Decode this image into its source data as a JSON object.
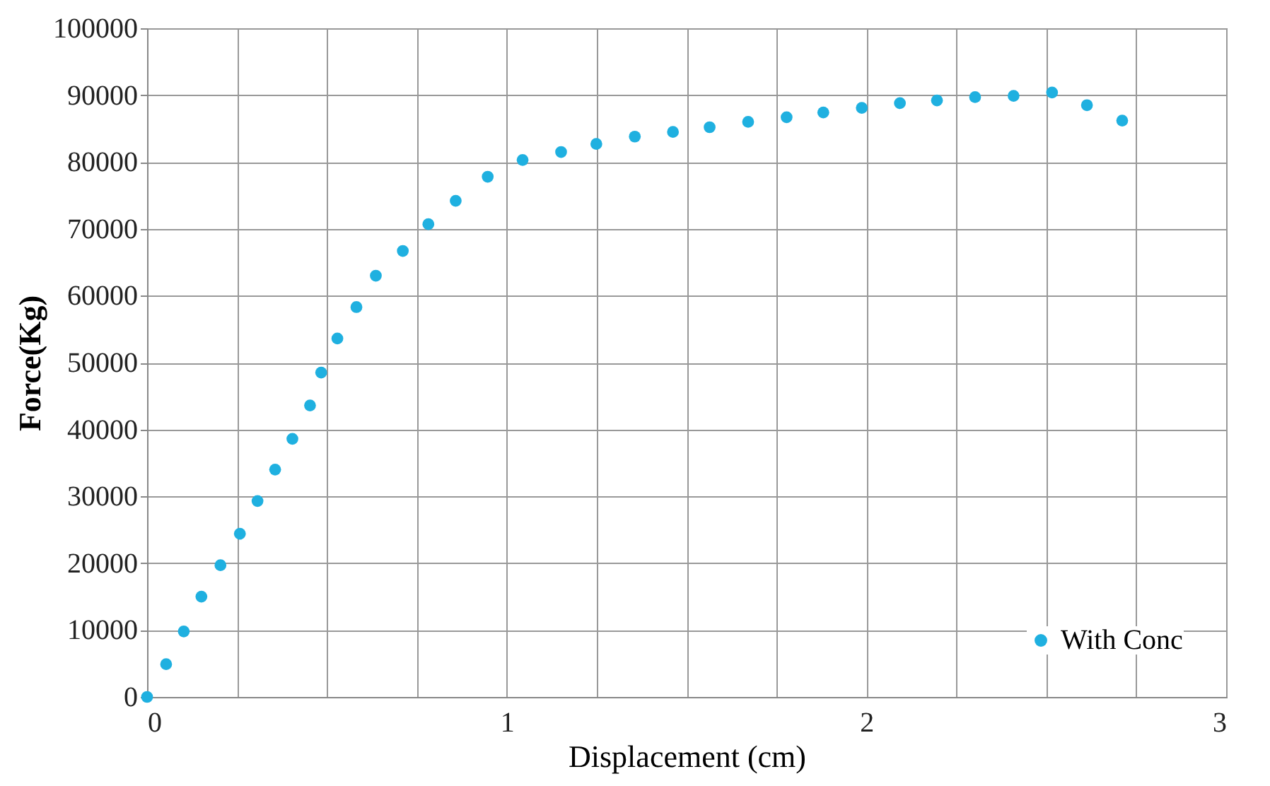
{
  "chart_data": {
    "type": "scatter",
    "xlabel": "Displacement (cm)",
    "ylabel": "Force(Kg)",
    "x": [
      0,
      0.053,
      0.102,
      0.151,
      0.204,
      0.258,
      0.307,
      0.356,
      0.404,
      0.453,
      0.484,
      0.529,
      0.582,
      0.636,
      0.711,
      0.782,
      0.858,
      0.947,
      1.044,
      1.151,
      1.249,
      1.356,
      1.462,
      1.564,
      1.671,
      1.778,
      1.88,
      1.987,
      2.093,
      2.196,
      2.302,
      2.409,
      2.516,
      2.613,
      2.711
    ],
    "series": [
      {
        "name": "With Conc",
        "color": "#1fb0e0",
        "values": [
          0,
          4900,
          9800,
          15000,
          19700,
          24400,
          29300,
          34000,
          38600,
          43600,
          48500,
          53600,
          58300,
          63000,
          66700,
          70700,
          74200,
          77800,
          80300,
          81500,
          82700,
          83800,
          84500,
          85200,
          86000,
          86700,
          87400,
          88100,
          88800,
          89200,
          89700,
          89900,
          90400,
          88500,
          86200
        ]
      }
    ],
    "xlim": [
      0,
      3
    ],
    "xticks": [
      0,
      {
        "value": 0.25,
        "label": null
      },
      {
        "value": 0.5,
        "label": null
      },
      {
        "value": 0.75,
        "label": null
      },
      1,
      {
        "value": 1.25,
        "label": null
      },
      {
        "value": 1.5,
        "label": null
      },
      {
        "value": 1.75,
        "label": null
      },
      2,
      {
        "value": 2.25,
        "label": null
      },
      {
        "value": 2.5,
        "label": null
      },
      {
        "value": 2.75,
        "label": null
      },
      3
    ],
    "ylim": [
      0,
      100000
    ],
    "yticks": [
      0,
      10000,
      20000,
      30000,
      40000,
      50000,
      60000,
      70000,
      80000,
      90000,
      100000
    ],
    "grid": true,
    "legend": "bottom right"
  }
}
